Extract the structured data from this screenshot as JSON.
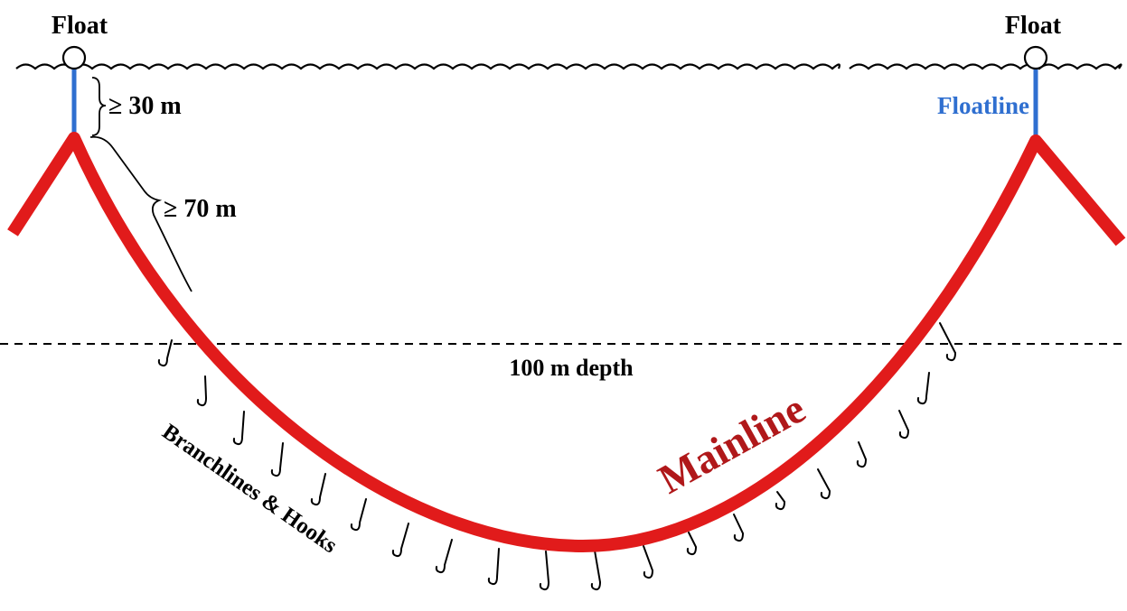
{
  "labels": {
    "float_left": "Float",
    "float_right": "Float",
    "floatline": "Floatline",
    "geq30": "≥ 30 m",
    "geq70": "≥ 70 m",
    "depth": "100 m depth",
    "mainline": "Mainline",
    "branchlines": "Branchlines & Hooks"
  },
  "colors": {
    "mainline": "#e11b1b",
    "floatline": "#2f6fd0",
    "floatline_text": "#2f6fd0",
    "mainline_text": "#b0181a",
    "ink": "#000000"
  }
}
